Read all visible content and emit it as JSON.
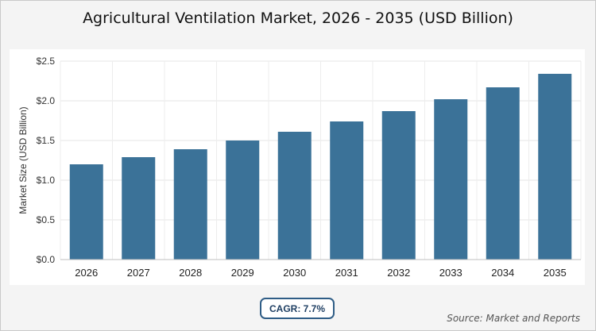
{
  "chart_data": {
    "type": "bar",
    "title": "Agricultural Ventilation Market, 2026 - 2035 (USD Billion)",
    "ylabel": "Market Size (USD Billion)",
    "xlabel": "",
    "categories": [
      "2026",
      "2027",
      "2028",
      "2029",
      "2030",
      "2031",
      "2032",
      "2033",
      "2034",
      "2035"
    ],
    "values": [
      1.2,
      1.29,
      1.39,
      1.5,
      1.61,
      1.74,
      1.87,
      2.02,
      2.17,
      2.34
    ],
    "ylim": [
      0,
      2.5
    ],
    "yticks": [
      0,
      0.5,
      1.0,
      1.5,
      2.0,
      2.5
    ],
    "ytick_labels": [
      "$0.0",
      "$0.5",
      "$1.0",
      "$1.5",
      "$2.0",
      "$2.5"
    ],
    "grid": true,
    "bar_color": "#3b7298"
  },
  "badge": {
    "cagr": "CAGR: 7.7%"
  },
  "footer": {
    "source": "Source: Market and Reports"
  },
  "colors": {
    "bar": "#3b7298",
    "badge_border": "#2f5d86",
    "background": "#f4f4f4"
  }
}
